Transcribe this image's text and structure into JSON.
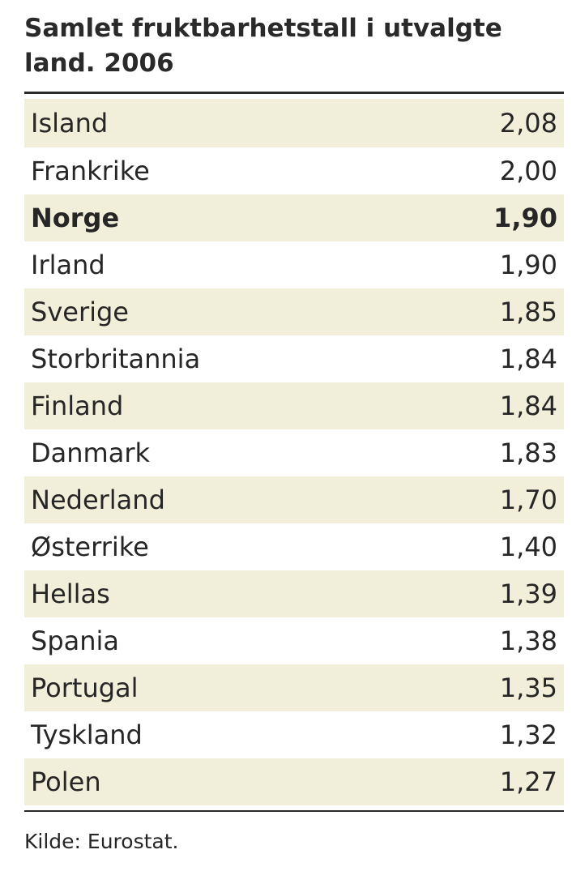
{
  "title": "Samlet fruktbarhetstall i utvalgte land. 2006",
  "rows": [
    {
      "country": "Island",
      "value": "2,08",
      "shaded": true,
      "bold": false
    },
    {
      "country": "Frankrike",
      "value": "2,00",
      "shaded": false,
      "bold": false
    },
    {
      "country": "Norge",
      "value": "1,90",
      "shaded": true,
      "bold": true
    },
    {
      "country": "Irland",
      "value": "1,90",
      "shaded": false,
      "bold": false
    },
    {
      "country": "Sverige",
      "value": "1,85",
      "shaded": true,
      "bold": false
    },
    {
      "country": "Storbritannia",
      "value": "1,84",
      "shaded": false,
      "bold": false
    },
    {
      "country": "Finland",
      "value": "1,84",
      "shaded": true,
      "bold": false
    },
    {
      "country": "Danmark",
      "value": "1,83",
      "shaded": false,
      "bold": false
    },
    {
      "country": "Nederland",
      "value": "1,70",
      "shaded": true,
      "bold": false
    },
    {
      "country": "Østerrike",
      "value": "1,40",
      "shaded": false,
      "bold": false
    },
    {
      "country": "Hellas",
      "value": "1,39",
      "shaded": true,
      "bold": false
    },
    {
      "country": "Spania",
      "value": "1,38",
      "shaded": false,
      "bold": false
    },
    {
      "country": "Portugal",
      "value": "1,35",
      "shaded": true,
      "bold": false
    },
    {
      "country": "Tyskland",
      "value": "1,32",
      "shaded": false,
      "bold": false
    },
    {
      "country": "Polen",
      "value": "1,27",
      "shaded": true,
      "bold": false
    }
  ],
  "source": "Kilde: Eurostat.",
  "colors": {
    "row_shade": "#f1efd9",
    "rule": "#2a2a2a",
    "text": "#262626"
  }
}
